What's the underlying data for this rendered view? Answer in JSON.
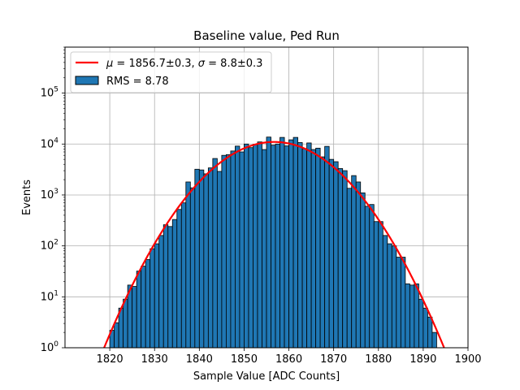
{
  "chart_data": {
    "type": "bar",
    "title": "Baseline value, Ped Run",
    "xlabel": "Sample Value [ADC Counts]",
    "ylabel": "Events",
    "xlim": [
      1810,
      1900
    ],
    "ylim": [
      1,
      800000
    ],
    "yscale": "log",
    "grid": true,
    "xticks": [
      "1820",
      "1830",
      "1840",
      "1850",
      "1860",
      "1870",
      "1880",
      "1890",
      "1900"
    ],
    "yticks": [
      {
        "value": 1,
        "base": "10",
        "exp": "0"
      },
      {
        "value": 10,
        "base": "10",
        "exp": "1"
      },
      {
        "value": 100,
        "base": "10",
        "exp": "2"
      },
      {
        "value": 1000,
        "base": "10",
        "exp": "3"
      },
      {
        "value": 10000,
        "base": "10",
        "exp": "4"
      },
      {
        "value": 100000,
        "base": "10",
        "exp": "5"
      }
    ],
    "bin_width": 1,
    "histogram": {
      "name": "RMS = 8.78",
      "color": "#1f77b4",
      "edgecolor": "#000000",
      "bin_left": [
        1819,
        1820,
        1821,
        1822,
        1823,
        1824,
        1825,
        1826,
        1827,
        1828,
        1829,
        1830,
        1831,
        1832,
        1833,
        1834,
        1835,
        1836,
        1837,
        1838,
        1839,
        1840,
        1841,
        1842,
        1843,
        1844,
        1845,
        1846,
        1847,
        1848,
        1849,
        1850,
        1851,
        1852,
        1853,
        1854,
        1855,
        1856,
        1857,
        1858,
        1859,
        1860,
        1861,
        1862,
        1863,
        1864,
        1865,
        1866,
        1867,
        1868,
        1869,
        1870,
        1871,
        1872,
        1873,
        1874,
        1875,
        1876,
        1877,
        1878,
        1879,
        1880,
        1881,
        1882,
        1883,
        1884,
        1885,
        1886,
        1887,
        1888,
        1889,
        1890,
        1891,
        1892
      ],
      "counts": [
        1.0,
        2.2,
        3.1,
        6.0,
        9.0,
        17,
        16,
        32,
        40,
        54,
        88,
        110,
        160,
        260,
        240,
        330,
        520,
        700,
        1800,
        1380,
        3200,
        3100,
        2600,
        3400,
        5200,
        2900,
        6000,
        6200,
        7300,
        9100,
        7000,
        10000,
        8500,
        9900,
        11000,
        7800,
        13700,
        9500,
        10000,
        13500,
        9200,
        12100,
        13500,
        10700,
        8100,
        10500,
        7800,
        8300,
        5600,
        9000,
        5000,
        4500,
        3300,
        3000,
        1350,
        2400,
        1800,
        1100,
        600,
        650,
        300,
        300,
        160,
        110,
        100,
        60,
        60,
        18,
        17,
        18,
        9,
        6,
        4,
        2
      ]
    },
    "fit": {
      "name": "μ = 1856.7±0.3, σ = 8.8±0.3",
      "name_mu_part": "μ",
      "name_mid": " = 1856.7±0.3, ",
      "name_sigma_part": "σ",
      "name_end": " = 8.8±0.3",
      "color": "#ff0000",
      "mu": 1856.7,
      "sigma": 8.8,
      "amplitude": 11000
    },
    "legend_loc": "top-left"
  }
}
